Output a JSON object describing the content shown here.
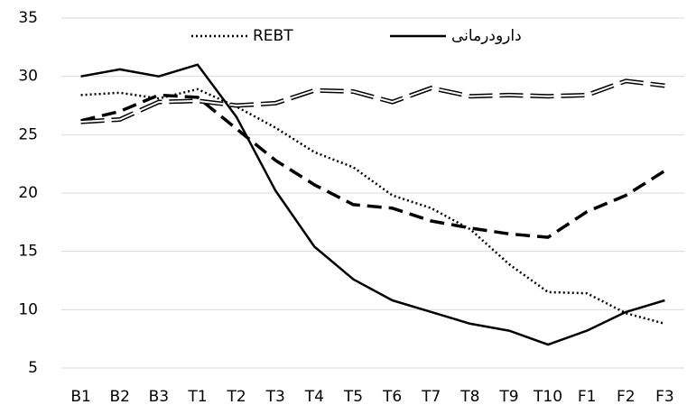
{
  "chart_data": {
    "type": "line",
    "categories": [
      "B1",
      "B2",
      "B3",
      "T1",
      "T2",
      "T3",
      "T4",
      "T5",
      "T6",
      "T7",
      "T8",
      "T9",
      "T10",
      "F1",
      "F2",
      "F3"
    ],
    "series": [
      {
        "name": "REBT",
        "color": "#000000",
        "style": "dotted",
        "values": [
          28.4,
          28.6,
          28.1,
          28.9,
          27.4,
          25.6,
          23.5,
          22.2,
          19.8,
          18.7,
          16.9,
          13.9,
          11.5,
          11.4,
          9.7,
          8.8
        ]
      },
      {
        "name": "دارودرمانی",
        "color": "#000000",
        "style": "solid",
        "values": [
          30,
          30.6,
          30,
          31,
          26.5,
          20.2,
          15.4,
          12.6,
          10.8,
          9.8,
          8.8,
          8.2,
          7,
          8.2,
          9.8,
          10.8
        ]
      },
      {
        "color": "#000000",
        "style": "dashed",
        "values": [
          26.2,
          27,
          28.4,
          28.2,
          25.5,
          22.8,
          20.7,
          19,
          18.7,
          17.6,
          17,
          16.5,
          16.2,
          18.4,
          19.8,
          21.9
        ]
      },
      {
        "color": "#000000",
        "style": "double-dashed",
        "values": [
          26.1,
          26.3,
          27.8,
          27.9,
          27.5,
          27.7,
          28.8,
          28.7,
          27.8,
          29,
          28.3,
          28.4,
          28.3,
          28.4,
          29.6,
          29.2
        ]
      }
    ],
    "ylim": [
      5,
      35
    ],
    "yticks": [
      5,
      10,
      15,
      20,
      25,
      30,
      35
    ],
    "grid": true,
    "legend": "top"
  }
}
